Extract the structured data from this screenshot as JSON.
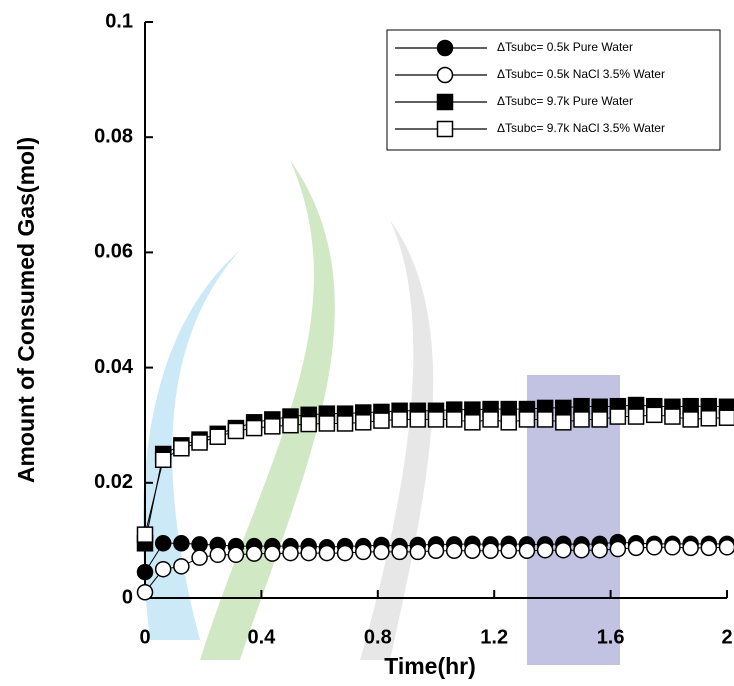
{
  "chart_data": {
    "type": "line",
    "xlabel": "Time(hr)",
    "ylabel": "Amount of Consumed Gas(mol)",
    "x": [
      0,
      0.0625,
      0.125,
      0.1875,
      0.25,
      0.3125,
      0.375,
      0.4375,
      0.5,
      0.5625,
      0.625,
      0.6875,
      0.75,
      0.8125,
      0.875,
      0.9375,
      1,
      1.0625,
      1.125,
      1.1875,
      1.25,
      1.3125,
      1.375,
      1.4375,
      1.5,
      1.5625,
      1.625,
      1.6875,
      1.75,
      1.8125,
      1.875,
      1.9375,
      2
    ],
    "series": [
      {
        "name": "ΔTsubc= 0.5k Pure Water",
        "color": "#000000",
        "marker": "circle",
        "filled": true,
        "values": [
          0.0045,
          0.0095,
          0.0095,
          0.0093,
          0.0092,
          0.009,
          0.009,
          0.009,
          0.009,
          0.009,
          0.0088,
          0.009,
          0.009,
          0.0092,
          0.009,
          0.0092,
          0.0093,
          0.0093,
          0.0094,
          0.0093,
          0.0094,
          0.0093,
          0.0093,
          0.0094,
          0.0093,
          0.0094,
          0.0097,
          0.0095,
          0.0094,
          0.0094,
          0.0094,
          0.0094,
          0.0094
        ]
      },
      {
        "name": "ΔTsubc= 0.5k NaCl 3.5% Water",
        "color": "#000000",
        "marker": "circle",
        "filled": false,
        "values": [
          0.001,
          0.005,
          0.0055,
          0.007,
          0.0075,
          0.0075,
          0.0077,
          0.0077,
          0.0078,
          0.0078,
          0.0078,
          0.0078,
          0.008,
          0.008,
          0.008,
          0.008,
          0.0082,
          0.0082,
          0.0082,
          0.0082,
          0.0082,
          0.0082,
          0.0083,
          0.0083,
          0.0083,
          0.0083,
          0.0085,
          0.0087,
          0.0088,
          0.0088,
          0.0087,
          0.0087,
          0.0088
        ]
      },
      {
        "name": "ΔTsubc= 9.7k Pure Water",
        "color": "#000000",
        "marker": "square",
        "filled": true,
        "values": [
          0.0095,
          0.025,
          0.0265,
          0.0275,
          0.0285,
          0.0295,
          0.0305,
          0.031,
          0.0315,
          0.0318,
          0.032,
          0.032,
          0.0322,
          0.0323,
          0.0325,
          0.0325,
          0.0325,
          0.0327,
          0.0327,
          0.0328,
          0.0328,
          0.0328,
          0.033,
          0.033,
          0.0333,
          0.0332,
          0.0333,
          0.0335,
          0.0333,
          0.0332,
          0.0333,
          0.0333,
          0.0332
        ]
      },
      {
        "name": "ΔTsubc= 9.7k NaCl 3.5% Water",
        "color": "#000000",
        "marker": "square",
        "filled": false,
        "values": [
          0.011,
          0.024,
          0.026,
          0.027,
          0.028,
          0.029,
          0.0295,
          0.0298,
          0.03,
          0.0302,
          0.0303,
          0.0303,
          0.0305,
          0.0308,
          0.031,
          0.031,
          0.031,
          0.031,
          0.0305,
          0.031,
          0.0305,
          0.031,
          0.031,
          0.0305,
          0.031,
          0.031,
          0.0315,
          0.0315,
          0.0318,
          0.0315,
          0.031,
          0.0312,
          0.0313
        ]
      }
    ],
    "xlim": [
      0,
      2
    ],
    "xticks": [
      0,
      0.4,
      0.8,
      1.2,
      1.6,
      2
    ],
    "ylim": [
      0,
      0.1
    ],
    "yticks": [
      0,
      0.02,
      0.04,
      0.06,
      0.08,
      0.1
    ],
    "legend": "upper right"
  }
}
